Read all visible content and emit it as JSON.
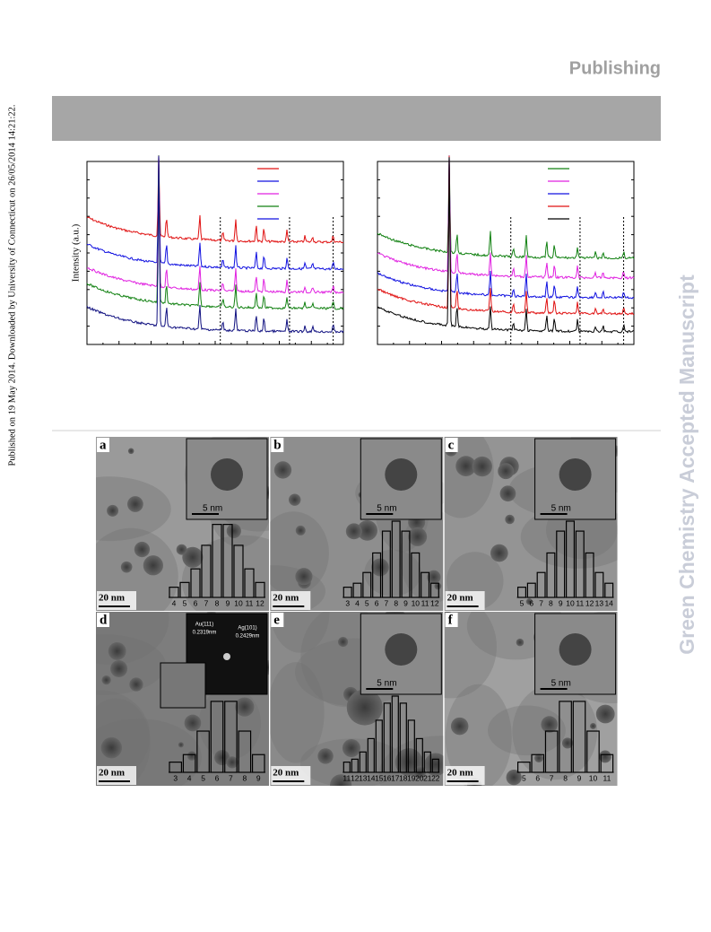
{
  "header": {
    "publisher": "Publishing"
  },
  "sidebar": {
    "journal": "Green Chemistry Accepted Manuscript",
    "download_note": "Published on 19 May 2014. Downloaded by University of Connecticut on 26/05/2014 14:21:22."
  },
  "figure_xrd": {
    "y_label": "Intensity (a.u.)"
  },
  "figure_tem": {
    "panels": [
      {
        "label": "a",
        "scale_bar": "20 nm",
        "inset_scale": "5 nm",
        "histogram_ticks": [
          4,
          5,
          6,
          7,
          8,
          9,
          10,
          11,
          12
        ]
      },
      {
        "label": "b",
        "scale_bar": "20 nm",
        "inset_scale": "5 nm",
        "histogram_ticks": [
          3,
          4,
          5,
          6,
          7,
          8,
          9,
          10,
          11,
          12
        ]
      },
      {
        "label": "c",
        "scale_bar": "20 nm",
        "inset_scale": "5 nm",
        "histogram_ticks": [
          5,
          6,
          7,
          8,
          9,
          10,
          11,
          12,
          13,
          14
        ]
      },
      {
        "label": "d",
        "scale_bar": "20 nm",
        "fft_labels": [
          "Au(111)",
          "0.2319nm",
          "Ag(101)",
          "0.2429nm"
        ],
        "histogram_ticks": [
          3,
          4,
          5,
          6,
          7,
          8,
          9
        ]
      },
      {
        "label": "e",
        "scale_bar": "20 nm",
        "inset_scale": "5 nm",
        "histogram_ticks": [
          11,
          12,
          13,
          14,
          15,
          16,
          17,
          18,
          19,
          20,
          21,
          22
        ]
      },
      {
        "label": "f",
        "scale_bar": "20 nm",
        "inset_scale": "5 nm",
        "histogram_ticks": [
          5,
          6,
          7,
          8,
          9,
          10,
          11
        ]
      }
    ]
  }
}
